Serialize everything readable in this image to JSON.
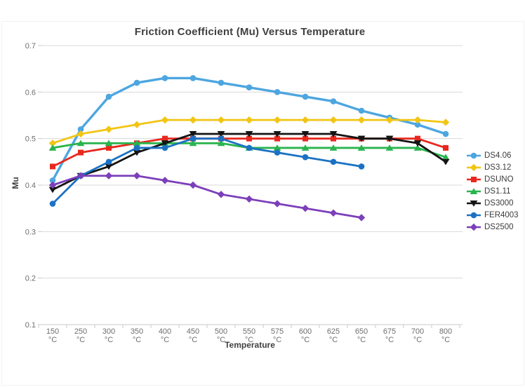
{
  "chart_data": {
    "type": "line",
    "title": "Friction Coefficient (Mu) Versus Temperature",
    "xlabel": "Temperature",
    "ylabel": "Mu",
    "ylim": [
      0.1,
      0.7
    ],
    "y_ticks": [
      0.7,
      0.6,
      0.5,
      0.4,
      0.3,
      0.2,
      0.1
    ],
    "grid": true,
    "legend_position": "right",
    "category_unit": "°C",
    "categories": [
      "150",
      "250",
      "300",
      "350",
      "400",
      "450",
      "500",
      "550",
      "575",
      "600",
      "625",
      "650",
      "675",
      "700",
      "800"
    ],
    "series": [
      {
        "name": "DS4.06",
        "color": "#4da6e0",
        "marker": "circle",
        "values": [
          0.41,
          0.52,
          0.59,
          0.62,
          0.63,
          0.63,
          0.62,
          0.61,
          0.6,
          0.59,
          0.58,
          0.56,
          0.545,
          0.53,
          0.51
        ]
      },
      {
        "name": "DS3.12",
        "color": "#f2c513",
        "marker": "diamond",
        "values": [
          0.49,
          0.51,
          0.52,
          0.53,
          0.54,
          0.54,
          0.54,
          0.54,
          0.54,
          0.54,
          0.54,
          0.54,
          0.54,
          0.54,
          0.535
        ]
      },
      {
        "name": "DSUNO",
        "color": "#e8281e",
        "marker": "square",
        "values": [
          0.44,
          0.47,
          0.48,
          0.49,
          0.5,
          0.5,
          0.5,
          0.5,
          0.5,
          0.5,
          0.5,
          0.5,
          0.5,
          0.5,
          0.48
        ]
      },
      {
        "name": "DS1.11",
        "color": "#29b44e",
        "marker": "triangle-up",
        "values": [
          0.48,
          0.49,
          0.49,
          0.49,
          0.49,
          0.49,
          0.49,
          0.48,
          0.48,
          0.48,
          0.48,
          0.48,
          0.48,
          0.48,
          0.46
        ]
      },
      {
        "name": "DS3000",
        "color": "#141414",
        "marker": "triangle-down",
        "values": [
          0.39,
          0.42,
          0.44,
          0.47,
          0.49,
          0.51,
          0.51,
          0.51,
          0.51,
          0.51,
          0.51,
          0.5,
          0.5,
          0.49,
          0.45
        ]
      },
      {
        "name": "FER4003",
        "color": "#1b72c4",
        "marker": "circle",
        "values": [
          0.36,
          0.42,
          0.45,
          0.48,
          0.48,
          0.5,
          0.5,
          0.48,
          0.47,
          0.46,
          0.45,
          0.44,
          null,
          null,
          null
        ]
      },
      {
        "name": "DS2500",
        "color": "#7c3fba",
        "marker": "diamond",
        "values": [
          0.4,
          0.42,
          0.42,
          0.42,
          0.41,
          0.4,
          0.38,
          0.37,
          0.36,
          0.35,
          0.34,
          0.33,
          null,
          null,
          null
        ]
      }
    ]
  }
}
